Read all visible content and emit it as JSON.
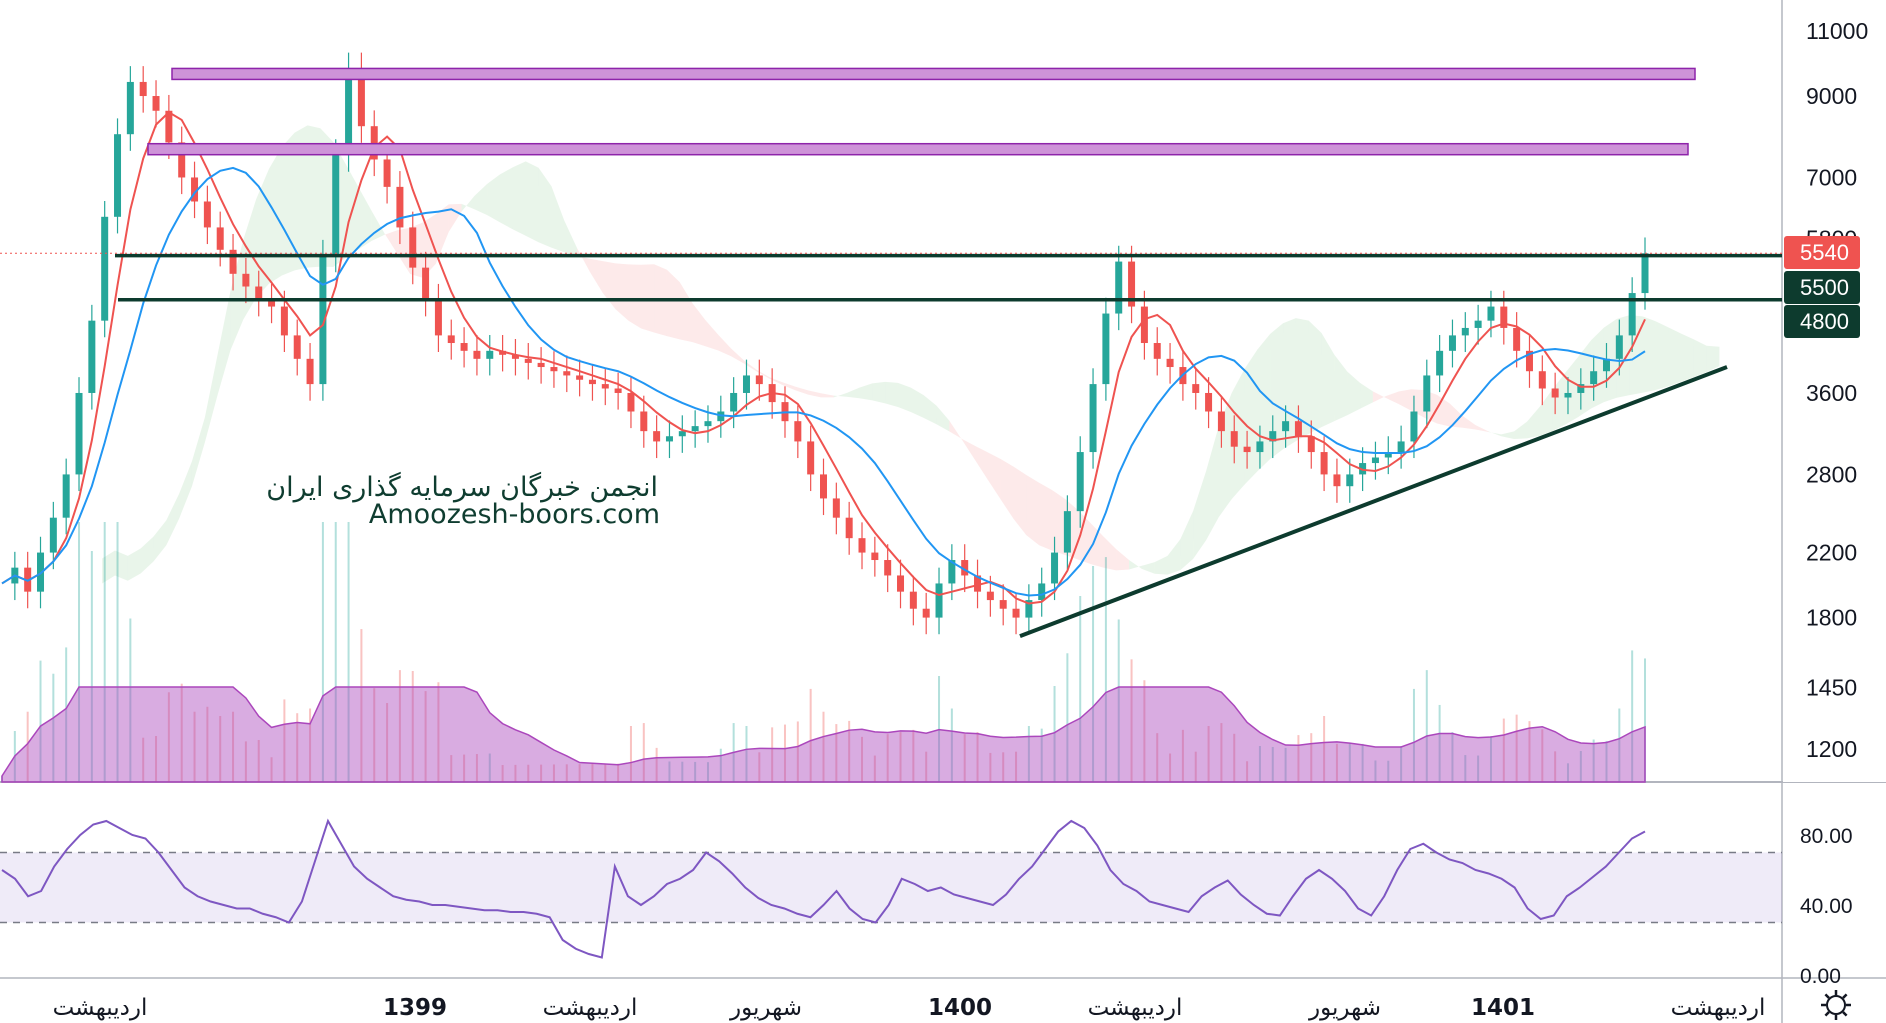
{
  "chart_data": {
    "type": "candlestick",
    "price_axis": {
      "ticks": [
        "11000",
        "9000",
        "7000",
        "5800",
        "3600",
        "2800",
        "2200",
        "1800",
        "1450",
        "1200"
      ],
      "scale": "log"
    },
    "time_axis": {
      "labels": [
        "اردیبهشت",
        "1399",
        "اردیبهشت",
        "شهریور",
        "1400",
        "اردیبهشت",
        "شهریور",
        "1401",
        "اردیبهشت"
      ],
      "bold": [
        false,
        true,
        false,
        false,
        true,
        false,
        false,
        true,
        false
      ]
    },
    "price_badges": [
      {
        "text": "5540",
        "color": "#ef5350"
      },
      {
        "text": "5500",
        "color": "#0d3b2e"
      },
      {
        "text": "4800",
        "color": "#0d3b2e"
      }
    ],
    "horizontal_levels": [
      {
        "price": 5500,
        "color": "#0d3b2e"
      },
      {
        "price": 4800,
        "color": "#0d3b2e"
      }
    ],
    "resistance_zones": [
      {
        "price": 9650,
        "color": "#ce93d8"
      },
      {
        "price": 7650,
        "color": "#ce93d8"
      }
    ],
    "trendline": {
      "from": {
        "price": 1700
      },
      "to": {
        "price": 3900
      },
      "color": "#0d3b2e"
    },
    "series": [
      {
        "kind": "close",
        "values": [
          2000,
          2100,
          1950,
          2200,
          2450,
          2800,
          3600,
          4500,
          6200,
          8000,
          9400,
          9000,
          8600,
          7800,
          7000,
          6500,
          6000,
          5600,
          5200,
          5000,
          4800,
          4700,
          4300,
          4000,
          3700,
          5500,
          7500,
          9800,
          8200,
          7400,
          6800,
          6000,
          5300,
          4800,
          4300,
          4200,
          4100,
          4000,
          4100,
          4050,
          4000,
          3950,
          3900,
          3850,
          3800,
          3750,
          3700,
          3650,
          3600,
          3400,
          3200,
          3100,
          3150,
          3200,
          3250,
          3300,
          3400,
          3600,
          3800,
          3700,
          3500,
          3300,
          3100,
          2800,
          2600,
          2450,
          2300,
          2200,
          2150,
          2050,
          1950,
          1850,
          1800,
          2000,
          2150,
          2050,
          1950,
          1900,
          1850,
          1800,
          1900,
          2000,
          2200,
          2500,
          3000,
          3700,
          4600,
          5400,
          4700,
          4200,
          4000,
          3900,
          3700,
          3600,
          3400,
          3200,
          3050,
          3000,
          3100,
          3200,
          3300,
          3150,
          3000,
          2800,
          2700,
          2800,
          2900,
          2950,
          3000,
          3100,
          3400,
          3800,
          4100,
          4300,
          4400,
          4500,
          4700,
          4400,
          4100,
          3850,
          3650,
          3550,
          3600,
          3700,
          3850,
          4000,
          4300,
          4900,
          5540
        ]
      },
      {
        "kind": "ma_fast",
        "color": "#ef5350"
      },
      {
        "kind": "ma_slow",
        "color": "#2196f3"
      }
    ],
    "volume": {
      "color": "#ab47bc"
    },
    "rsi": {
      "ticks": [
        "80.00",
        "40.00",
        "0.00"
      ],
      "upper": 70,
      "lower": 30,
      "values": [
        60,
        55,
        45,
        48,
        62,
        72,
        80,
        86,
        88,
        84,
        80,
        78,
        70,
        60,
        50,
        45,
        42,
        40,
        38,
        38,
        35,
        33,
        30,
        42,
        65,
        88,
        75,
        62,
        55,
        50,
        45,
        43,
        42,
        40,
        40,
        39,
        38,
        37,
        37,
        36,
        36,
        35,
        33,
        20,
        15,
        12,
        10,
        62,
        45,
        40,
        45,
        52,
        55,
        60,
        70,
        65,
        58,
        50,
        44,
        40,
        38,
        35,
        33,
        40,
        48,
        38,
        32,
        30,
        40,
        55,
        52,
        48,
        50,
        46,
        44,
        42,
        40,
        46,
        55,
        62,
        72,
        82,
        88,
        84,
        74,
        60,
        52,
        48,
        42,
        40,
        38,
        36,
        45,
        50,
        54,
        46,
        40,
        35,
        34,
        45,
        55,
        60,
        55,
        48,
        38,
        34,
        45,
        60,
        72,
        75,
        70,
        66,
        64,
        60,
        58,
        55,
        50,
        38,
        32,
        34,
        45,
        50,
        56,
        62,
        70,
        78,
        82
      ]
    },
    "watermark": [
      "انجمن خبرگان سرمایه گذاری ایران",
      "Amoozesh-boors.com"
    ]
  }
}
